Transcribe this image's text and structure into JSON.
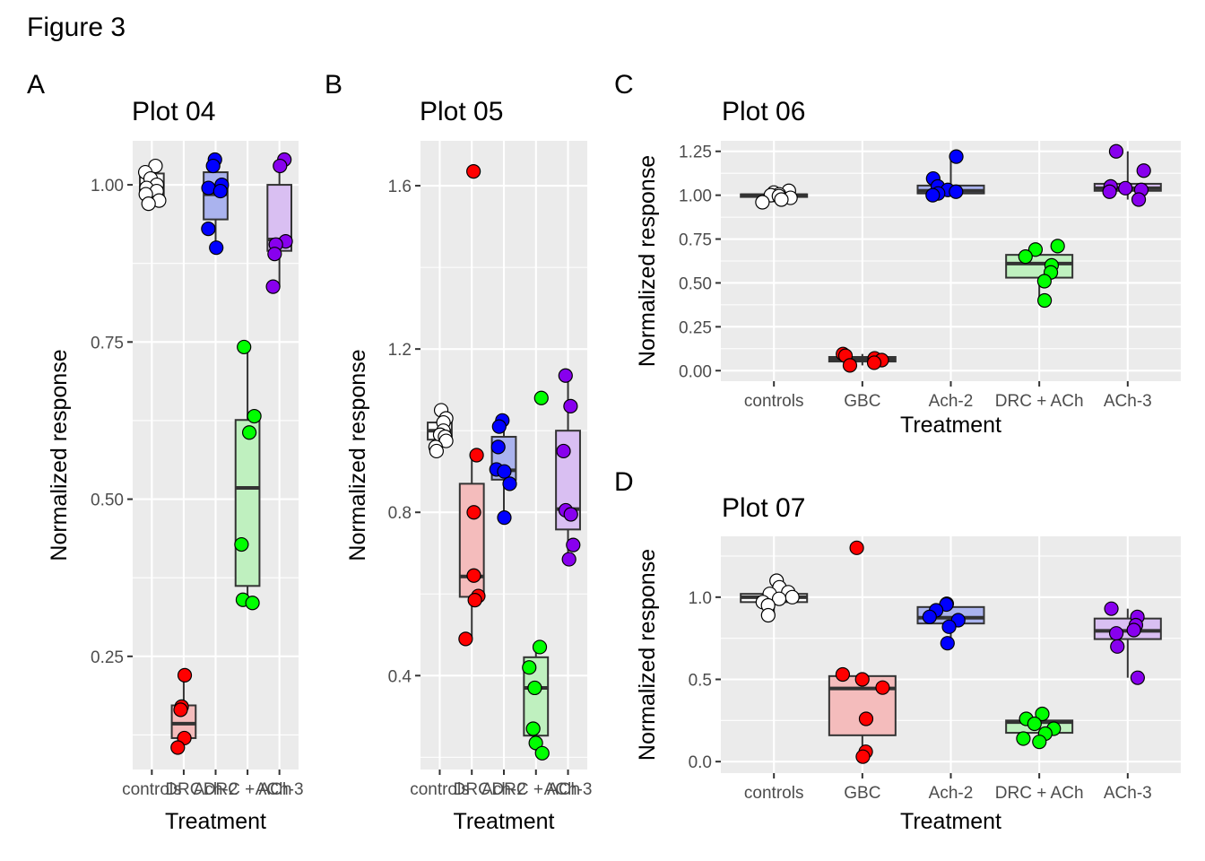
{
  "figure": {
    "title": "Figure 3"
  },
  "chart_data": [
    {
      "panel": "A",
      "type": "box",
      "title": "Plot 04",
      "xlabel": "Treatment",
      "ylabel": "Normalized response",
      "ylim": [
        0.07,
        1.07
      ],
      "yticks": [
        0.25,
        0.5,
        0.75,
        1.0
      ],
      "ytick_labels": [
        "0.25",
        "0.50",
        "0.75",
        "1.00"
      ],
      "categories": [
        "controls",
        "DRC",
        "Ach-2",
        "DRC + ACh",
        "ACh-3"
      ],
      "series": [
        {
          "category": "controls",
          "color": "#ffffff",
          "fill": "#ffffff",
          "box": {
            "q1": 0.983,
            "median": 1.0,
            "q3": 1.018,
            "lower": 0.97,
            "upper": 1.03
          },
          "points": [
            1.03,
            1.02,
            1.01,
            1.0,
            0.995,
            0.99,
            0.985,
            0.975,
            0.97
          ]
        },
        {
          "category": "DRC",
          "color": "#ff0000",
          "fill": "#f4bcbc",
          "box": {
            "q1": 0.12,
            "median": 0.143,
            "q3": 0.172,
            "lower": 0.105,
            "upper": 0.22
          },
          "points": [
            0.22,
            0.17,
            0.165,
            0.12,
            0.105
          ]
        },
        {
          "category": "Ach-2",
          "color": "#0000ff",
          "fill": "#aab3ee",
          "box": {
            "q1": 0.945,
            "median": 0.985,
            "q3": 1.02,
            "lower": 0.9,
            "upper": 1.04
          },
          "points": [
            1.04,
            1.03,
            1.0,
            0.995,
            0.99,
            0.93,
            0.9
          ]
        },
        {
          "category": "DRC + ACh",
          "color": "#00ff00",
          "fill": "#bff0bf",
          "box": {
            "q1": 0.362,
            "median": 0.518,
            "q3": 0.626,
            "lower": 0.335,
            "upper": 0.742
          },
          "points": [
            0.742,
            0.632,
            0.606,
            0.428,
            0.34,
            0.335
          ]
        },
        {
          "category": "ACh-3",
          "color": "#8800ee",
          "fill": "#d9bff2",
          "box": {
            "q1": 0.895,
            "median": 0.913,
            "q3": 1.0,
            "lower": 0.838,
            "upper": 1.04
          },
          "points": [
            1.04,
            1.03,
            0.91,
            0.905,
            0.89,
            0.838
          ]
        }
      ]
    },
    {
      "panel": "B",
      "type": "box",
      "title": "Plot 05",
      "xlabel": "Treatment",
      "ylabel": "Normalized response",
      "ylim": [
        0.17,
        1.71
      ],
      "yticks": [
        0.4,
        0.8,
        1.2,
        1.6
      ],
      "ytick_labels": [
        "0.4",
        "0.8",
        "1.2",
        "1.6"
      ],
      "categories": [
        "controls",
        "DRC",
        "Ach-2",
        "DRC + ACh",
        "ACh-3"
      ],
      "series": [
        {
          "category": "controls",
          "color": "#ffffff",
          "fill": "#ffffff",
          "box": {
            "q1": 0.978,
            "median": 1.0,
            "q3": 1.02,
            "lower": 0.95,
            "upper": 1.05
          },
          "points": [
            1.05,
            1.03,
            1.02,
            1.0,
            0.99,
            0.985,
            0.975,
            0.96,
            0.95
          ]
        },
        {
          "category": "DRC",
          "color": "#ff0000",
          "fill": "#f4bcbc",
          "box": {
            "q1": 0.593,
            "median": 0.643,
            "q3": 0.87,
            "lower": 0.49,
            "upper": 0.94
          },
          "points": [
            1.635,
            0.94,
            0.8,
            0.645,
            0.595,
            0.585,
            0.49
          ]
        },
        {
          "category": "Ach-2",
          "color": "#0000ff",
          "fill": "#aab3ee",
          "box": {
            "q1": 0.88,
            "median": 0.903,
            "q3": 0.985,
            "lower": 0.787,
            "upper": 1.025
          },
          "points": [
            1.025,
            1.01,
            0.96,
            0.905,
            0.9,
            0.87,
            0.787
          ]
        },
        {
          "category": "DRC + ACh",
          "color": "#00ff00",
          "fill": "#bff0bf",
          "box": {
            "q1": 0.253,
            "median": 0.37,
            "q3": 0.445,
            "lower": 0.21,
            "upper": 0.47
          },
          "points": [
            1.08,
            0.47,
            0.42,
            0.37,
            0.27,
            0.235,
            0.21
          ]
        },
        {
          "category": "ACh-3",
          "color": "#8800ee",
          "fill": "#d9bff2",
          "box": {
            "q1": 0.758,
            "median": 0.808,
            "q3": 1.0,
            "lower": 0.685,
            "upper": 1.135
          },
          "points": [
            1.135,
            1.06,
            0.95,
            0.805,
            0.795,
            0.72,
            0.685
          ]
        }
      ]
    },
    {
      "panel": "C",
      "type": "box",
      "title": "Plot 06",
      "xlabel": "Treatment",
      "ylabel": "Normalized response",
      "ylim": [
        -0.06,
        1.31
      ],
      "yticks": [
        0.0,
        0.25,
        0.5,
        0.75,
        1.0,
        1.25
      ],
      "ytick_labels": [
        "0.00",
        "0.25",
        "0.50",
        "0.75",
        "1.00",
        "1.25"
      ],
      "categories": [
        "controls",
        "GBC",
        "Ach-2",
        "DRC + ACh",
        "ACh-3"
      ],
      "series": [
        {
          "category": "controls",
          "color": "#ffffff",
          "fill": "#ffffff",
          "box": {
            "q1": 0.99,
            "median": 1.0,
            "q3": 1.005,
            "lower": 0.96,
            "upper": 1.025
          },
          "points": [
            1.025,
            1.015,
            1.005,
            1.0,
            0.995,
            0.985,
            0.975,
            0.96
          ]
        },
        {
          "category": "GBC",
          "color": "#ff0000",
          "fill": "#f4bcbc",
          "box": {
            "q1": 0.052,
            "median": 0.065,
            "q3": 0.078,
            "lower": 0.03,
            "upper": 0.095
          },
          "points": [
            0.095,
            0.085,
            0.07,
            0.06,
            0.045,
            0.03
          ]
        },
        {
          "category": "Ach-2",
          "color": "#0000ff",
          "fill": "#aab3ee",
          "box": {
            "q1": 1.01,
            "median": 1.025,
            "q3": 1.055,
            "lower": 1.0,
            "upper": 1.22
          },
          "points": [
            1.22,
            1.095,
            1.05,
            1.03,
            1.02,
            1.01,
            1.0
          ]
        },
        {
          "category": "DRC + ACh",
          "color": "#00ff00",
          "fill": "#bff0bf",
          "box": {
            "q1": 0.53,
            "median": 0.61,
            "q3": 0.66,
            "lower": 0.4,
            "upper": 0.71
          },
          "points": [
            0.71,
            0.69,
            0.65,
            0.6,
            0.56,
            0.51,
            0.4
          ]
        },
        {
          "category": "ACh-3",
          "color": "#8800ee",
          "fill": "#d9bff2",
          "box": {
            "q1": 1.025,
            "median": 1.04,
            "q3": 1.065,
            "lower": 0.975,
            "upper": 1.25
          },
          "points": [
            1.25,
            1.14,
            1.05,
            1.04,
            1.03,
            1.02,
            0.975
          ]
        }
      ]
    },
    {
      "panel": "D",
      "type": "box",
      "title": "Plot 07",
      "xlabel": "Treatment",
      "ylabel": "Normalized response",
      "ylim": [
        -0.07,
        1.37
      ],
      "yticks": [
        0.0,
        0.5,
        1.0
      ],
      "ytick_labels": [
        "0.0",
        "0.5",
        "1.0"
      ],
      "categories": [
        "controls",
        "GBC",
        "Ach-2",
        "DRC + ACh",
        "ACh-3"
      ],
      "series": [
        {
          "category": "controls",
          "color": "#ffffff",
          "fill": "#ffffff",
          "box": {
            "q1": 0.97,
            "median": 1.0,
            "q3": 1.02,
            "lower": 0.89,
            "upper": 1.1
          },
          "points": [
            1.1,
            1.06,
            1.03,
            1.02,
            1.0,
            0.99,
            0.97,
            0.95,
            0.89
          ]
        },
        {
          "category": "GBC",
          "color": "#ff0000",
          "fill": "#f4bcbc",
          "box": {
            "q1": 0.16,
            "median": 0.445,
            "q3": 0.52,
            "lower": 0.03,
            "upper": 0.53
          },
          "points": [
            1.3,
            0.53,
            0.5,
            0.45,
            0.26,
            0.06,
            0.03
          ]
        },
        {
          "category": "Ach-2",
          "color": "#0000ff",
          "fill": "#aab3ee",
          "box": {
            "q1": 0.84,
            "median": 0.875,
            "q3": 0.94,
            "lower": 0.72,
            "upper": 0.96
          },
          "points": [
            0.96,
            0.955,
            0.92,
            0.88,
            0.86,
            0.82,
            0.72
          ]
        },
        {
          "category": "DRC + ACh",
          "color": "#00ff00",
          "fill": "#bff0bf",
          "box": {
            "q1": 0.175,
            "median": 0.24,
            "q3": 0.25,
            "lower": 0.12,
            "upper": 0.29
          },
          "points": [
            0.29,
            0.26,
            0.23,
            0.2,
            0.17,
            0.14,
            0.12
          ]
        },
        {
          "category": "ACh-3",
          "color": "#8800ee",
          "fill": "#d9bff2",
          "box": {
            "q1": 0.745,
            "median": 0.795,
            "q3": 0.87,
            "lower": 0.51,
            "upper": 0.93
          },
          "points": [
            0.93,
            0.88,
            0.83,
            0.8,
            0.78,
            0.7,
            0.51
          ]
        }
      ]
    }
  ]
}
